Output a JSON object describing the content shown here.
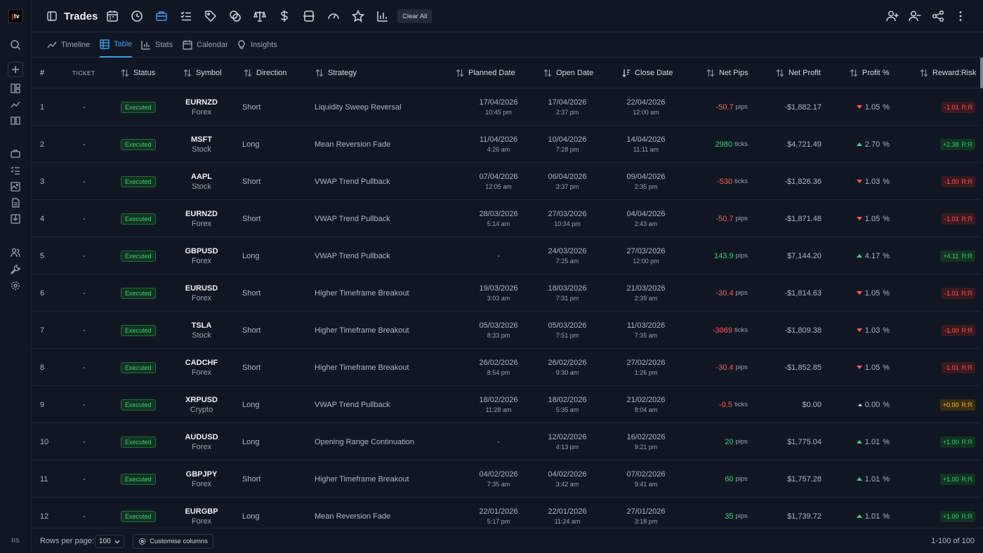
{
  "brand": {
    "logo_text": "tv"
  },
  "header": {
    "title": "Trades",
    "clear_all_label": "Clear All"
  },
  "view_tabs": [
    "Timeline",
    "Table",
    "Stats",
    "Calendar",
    "Insights"
  ],
  "active_tab": "Table",
  "user_initials": "RS",
  "colors": {
    "accent": "#3b9ee8",
    "positive": "#3fcf7e",
    "negative": "#ff5b5b",
    "neutral": "#f2c23a",
    "background": "#111722"
  },
  "columns": [
    "#",
    "TICKET",
    "Status",
    "Symbol",
    "Direction",
    "Strategy",
    "Planned Date",
    "Open Date",
    "Close Date",
    "Net Pips",
    "Net Profit",
    "Profit %",
    "Reward:Risk"
  ],
  "rows": [
    {
      "n": "1",
      "ticket": "-",
      "status": "Executed",
      "symbol": "EURNZD",
      "market": "Forex",
      "direction": "Short",
      "strategy": "Liquidity Sweep Reversal",
      "planned_date": "17/04/2026",
      "planned_time": "10:45 pm",
      "open_date": "17/04/2026",
      "open_time": "2:37 pm",
      "close_date": "22/04/2026",
      "close_time": "12:00 am",
      "net_pips": "-50.7",
      "pips_unit": "pips",
      "net_profit": "-$1,882.17",
      "profit_pct": "1.05",
      "pct_sign": "%",
      "rr": "-1.01",
      "rr_label": "R:R",
      "trend": "down"
    },
    {
      "n": "2",
      "ticket": "-",
      "status": "Executed",
      "symbol": "MSFT",
      "market": "Stock",
      "direction": "Long",
      "strategy": "Mean Reversion Fade",
      "planned_date": "11/04/2026",
      "planned_time": "4:26 am",
      "open_date": "10/04/2026",
      "open_time": "7:28 pm",
      "close_date": "14/04/2026",
      "close_time": "11:11 am",
      "net_pips": "2980",
      "pips_unit": "ticks",
      "net_profit": "$4,721.49",
      "profit_pct": "2.70",
      "pct_sign": "%",
      "rr": "+2.38",
      "rr_label": "R:R",
      "trend": "up"
    },
    {
      "n": "3",
      "ticket": "-",
      "status": "Executed",
      "symbol": "AAPL",
      "market": "Stock",
      "direction": "Short",
      "strategy": "VWAP Trend Pullback",
      "planned_date": "07/04/2026",
      "planned_time": "12:05 am",
      "open_date": "06/04/2026",
      "open_time": "3:37 pm",
      "close_date": "09/04/2026",
      "close_time": "2:35 pm",
      "net_pips": "-530",
      "pips_unit": "ticks",
      "net_profit": "-$1,826.36",
      "profit_pct": "1.03",
      "pct_sign": "%",
      "rr": "-1.00",
      "rr_label": "R:R",
      "trend": "down"
    },
    {
      "n": "4",
      "ticket": "-",
      "status": "Executed",
      "symbol": "EURNZD",
      "market": "Forex",
      "direction": "Short",
      "strategy": "VWAP Trend Pullback",
      "planned_date": "28/03/2026",
      "planned_time": "5:14 am",
      "open_date": "27/03/2026",
      "open_time": "10:34 pm",
      "close_date": "04/04/2026",
      "close_time": "2:43 am",
      "net_pips": "-50.7",
      "pips_unit": "pips",
      "net_profit": "-$1,871.48",
      "profit_pct": "1.05",
      "pct_sign": "%",
      "rr": "-1.01",
      "rr_label": "R:R",
      "trend": "down"
    },
    {
      "n": "5",
      "ticket": "-",
      "status": "Executed",
      "symbol": "GBPUSD",
      "market": "Forex",
      "direction": "Long",
      "strategy": "VWAP Trend Pullback",
      "planned_date": "-",
      "planned_time": "",
      "open_date": "24/03/2026",
      "open_time": "7:25 am",
      "close_date": "27/03/2026",
      "close_time": "12:00 pm",
      "net_pips": "143.9",
      "pips_unit": "pips",
      "net_profit": "$7,144.20",
      "profit_pct": "4.17",
      "pct_sign": "%",
      "rr": "+4.11",
      "rr_label": "R:R",
      "trend": "up"
    },
    {
      "n": "6",
      "ticket": "-",
      "status": "Executed",
      "symbol": "EURUSD",
      "market": "Forex",
      "direction": "Short",
      "strategy": "Higher Timeframe Breakout",
      "planned_date": "19/03/2026",
      "planned_time": "3:03 am",
      "open_date": "18/03/2026",
      "open_time": "7:31 pm",
      "close_date": "21/03/2026",
      "close_time": "2:39 am",
      "net_pips": "-30.4",
      "pips_unit": "pips",
      "net_profit": "-$1,814.63",
      "profit_pct": "1.05",
      "pct_sign": "%",
      "rr": "-1.01",
      "rr_label": "R:R",
      "trend": "down"
    },
    {
      "n": "7",
      "ticket": "-",
      "status": "Executed",
      "symbol": "TSLA",
      "market": "Stock",
      "direction": "Short",
      "strategy": "Higher Timeframe Breakout",
      "planned_date": "05/03/2026",
      "planned_time": "8:33 pm",
      "open_date": "05/03/2026",
      "open_time": "7:51 pm",
      "close_date": "11/03/2026",
      "close_time": "7:35 am",
      "net_pips": "-3069",
      "pips_unit": "ticks",
      "net_profit": "-$1,809.38",
      "profit_pct": "1.03",
      "pct_sign": "%",
      "rr": "-1.00",
      "rr_label": "R:R",
      "trend": "down"
    },
    {
      "n": "8",
      "ticket": "-",
      "status": "Executed",
      "symbol": "CADCHF",
      "market": "Forex",
      "direction": "Short",
      "strategy": "Higher Timeframe Breakout",
      "planned_date": "26/02/2026",
      "planned_time": "8:54 pm",
      "open_date": "26/02/2026",
      "open_time": "9:30 am",
      "close_date": "27/02/2026",
      "close_time": "1:26 pm",
      "net_pips": "-30.4",
      "pips_unit": "pips",
      "net_profit": "-$1,852.85",
      "profit_pct": "1.05",
      "pct_sign": "%",
      "rr": "-1.01",
      "rr_label": "R:R",
      "trend": "down"
    },
    {
      "n": "9",
      "ticket": "-",
      "status": "Executed",
      "symbol": "XRPUSD",
      "market": "Crypto",
      "direction": "Long",
      "strategy": "VWAP Trend Pullback",
      "planned_date": "18/02/2026",
      "planned_time": "11:28 am",
      "open_date": "18/02/2026",
      "open_time": "5:35 am",
      "close_date": "21/02/2026",
      "close_time": "8:04 am",
      "net_pips": "-0.5",
      "pips_unit": "ticks",
      "net_profit": "$0.00",
      "profit_pct": "0.00",
      "pct_sign": "%",
      "rr": "+0.00",
      "rr_label": "R:R",
      "trend": "flat"
    },
    {
      "n": "10",
      "ticket": "-",
      "status": "Executed",
      "symbol": "AUDUSD",
      "market": "Forex",
      "direction": "Long",
      "strategy": "Opening Range Continuation",
      "planned_date": "-",
      "planned_time": "",
      "open_date": "12/02/2026",
      "open_time": "4:13 pm",
      "close_date": "16/02/2026",
      "close_time": "9:21 pm",
      "net_pips": "20",
      "pips_unit": "pips",
      "net_profit": "$1,775.04",
      "profit_pct": "1.01",
      "pct_sign": "%",
      "rr": "+1.00",
      "rr_label": "R:R",
      "trend": "up"
    },
    {
      "n": "11",
      "ticket": "-",
      "status": "Executed",
      "symbol": "GBPJPY",
      "market": "Forex",
      "direction": "Short",
      "strategy": "Higher Timeframe Breakout",
      "planned_date": "04/02/2026",
      "planned_time": "7:35 am",
      "open_date": "04/02/2026",
      "open_time": "3:42 am",
      "close_date": "07/02/2026",
      "close_time": "9:41 am",
      "net_pips": "60",
      "pips_unit": "pips",
      "net_profit": "$1,757.28",
      "profit_pct": "1.01",
      "pct_sign": "%",
      "rr": "+1.00",
      "rr_label": "R:R",
      "trend": "up"
    },
    {
      "n": "12",
      "ticket": "-",
      "status": "Executed",
      "symbol": "EURGBP",
      "market": "Forex",
      "direction": "Long",
      "strategy": "Mean Reversion Fade",
      "planned_date": "22/01/2026",
      "planned_time": "5:17 pm",
      "open_date": "22/01/2026",
      "open_time": "11:24 am",
      "close_date": "27/01/2026",
      "close_time": "3:18 pm",
      "net_pips": "35",
      "pips_unit": "pips",
      "net_profit": "$1,739.72",
      "profit_pct": "1.01",
      "pct_sign": "%",
      "rr": "+1.00",
      "rr_label": "R:R",
      "trend": "up"
    }
  ],
  "footer": {
    "rows_per_page_label": "Rows per page:",
    "rows_per_page_value": "100",
    "customise_label": "Customise columns",
    "range_text": "1-100 of 100"
  }
}
